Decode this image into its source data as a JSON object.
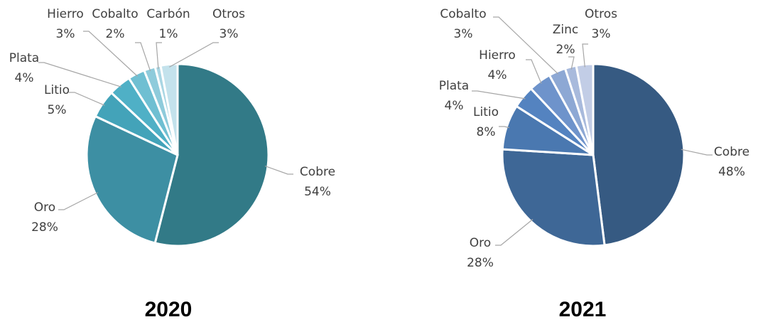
{
  "chart_data": [
    {
      "type": "pie",
      "title": "2020",
      "categories": [
        "Cobre",
        "Oro",
        "Litio",
        "Plata",
        "Hierro",
        "Cobalto",
        "Carbón",
        "Otros"
      ],
      "values": [
        54,
        28,
        5,
        4,
        3,
        2,
        1,
        3
      ],
      "value_labels": [
        "54%",
        "28%",
        "5%",
        "4%",
        "3%",
        "2%",
        "1%",
        "3%"
      ],
      "colors": [
        "#327a87",
        "#3d8fa3",
        "#43a3b9",
        "#4fb0c6",
        "#6fbfd2",
        "#8ecbdb",
        "#a9d6e3",
        "#c3e2ec"
      ]
    },
    {
      "type": "pie",
      "title": "2021",
      "categories": [
        "Cobre",
        "Oro",
        "Litio",
        "Plata",
        "Hierro",
        "Cobalto",
        "Zinc",
        "Otros"
      ],
      "values": [
        48,
        28,
        8,
        4,
        4,
        3,
        2,
        3
      ],
      "value_labels": [
        "48%",
        "28%",
        "8%",
        "4%",
        "4%",
        "3%",
        "2%",
        "3%"
      ],
      "colors": [
        "#365a82",
        "#3e6796",
        "#4a78b0",
        "#5483c0",
        "#6e93cb",
        "#8da8d4",
        "#a8badc",
        "#c2cde6"
      ]
    }
  ]
}
